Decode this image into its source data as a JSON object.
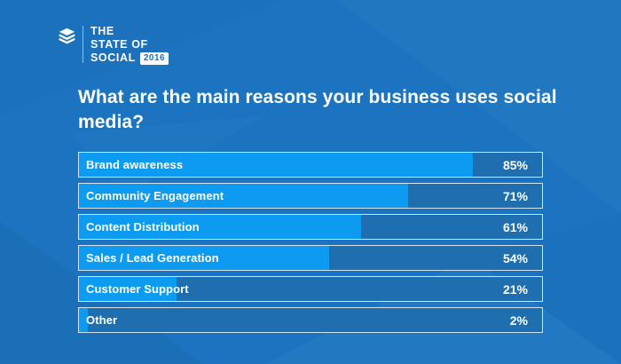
{
  "logo": {
    "line1": "THE",
    "line2": "STATE OF",
    "line3": "SOCIAL",
    "year_badge": "2016",
    "icon": "buffer-stack-icon"
  },
  "title": "What are the main reasons your business uses social media?",
  "chart_data": {
    "type": "bar",
    "orientation": "horizontal",
    "title": "What are the main reasons your business uses social media?",
    "categories": [
      "Brand awareness",
      "Community Engagement",
      "Content Distribution",
      "Sales / Lead Generation",
      "Customer Support",
      "Other"
    ],
    "values": [
      85,
      71,
      61,
      54,
      21,
      2
    ],
    "value_labels": [
      "85%",
      "71%",
      "61%",
      "54%",
      "21%",
      "2%"
    ],
    "xlabel": "",
    "ylabel": "",
    "xlim": [
      0,
      100
    ],
    "grid": false,
    "legend": false,
    "colors": {
      "background": "#1C74C0",
      "bar_fill": "#0D9BF2",
      "bar_track": "#1F6FB0",
      "bar_border": "rgba(255,255,255,0.8)",
      "text": "#FFFFFF",
      "badge_bg": "#FFFFFF",
      "badge_text": "#1B74C0"
    }
  }
}
